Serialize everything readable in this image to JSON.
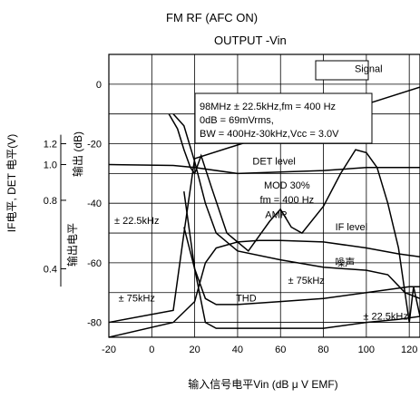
{
  "chart_data": {
    "type": "line",
    "title": "FM RF (AFC ON)",
    "subtitle": "OUTPUT -Vin",
    "xlabel": "输入信号电平Vin (dB μ V EMF)",
    "ylabel_left": "IF电平, DET 电平(V)",
    "ylabel_right_outer": "输出电平",
    "ylabel_right_inner": "输出 (dB)",
    "xlim": [
      -20,
      125
    ],
    "ylim": [
      -85,
      10
    ],
    "x_ticks": [
      "-20",
      "0",
      "20",
      "40",
      "60",
      "80",
      "100",
      "120"
    ],
    "x_tick_values": [
      -20,
      0,
      20,
      40,
      60,
      80,
      100,
      120
    ],
    "y_ticks": [
      "0",
      "-20",
      "-40",
      "-60",
      "-80"
    ],
    "y_tick_values": [
      0,
      -20,
      -40,
      -60,
      -80
    ],
    "volt_ticks": [
      "1.2",
      "1.0",
      "0.8",
      "0.4"
    ],
    "volt_tick_db": [
      -20,
      -27,
      -39,
      -62
    ],
    "grid": true,
    "conditions": [
      "98MHz ± 22.5kHz,fm = 400 Hz",
      "0dB = 69mVrms,",
      "BW = 400Hz-30kHz,Vcc = 3.0V"
    ],
    "annotations": [
      {
        "text": "Signal",
        "x": 101,
        "y": 4
      },
      {
        "text": "DET level",
        "x": 57,
        "y": -27
      },
      {
        "text": "MOD 30%",
        "x": 63,
        "y": -35
      },
      {
        "text": "fm = 400 Hz",
        "x": 63,
        "y": -40
      },
      {
        "text": "AMR",
        "x": 58,
        "y": -45
      },
      {
        "text": "IF level",
        "x": 93,
        "y": -49
      },
      {
        "text": "噪声",
        "x": 90,
        "y": -61
      },
      {
        "text": "± 22.5kHz",
        "x": -7,
        "y": -47
      },
      {
        "text": "± 75kHz",
        "x": -7,
        "y": -73
      },
      {
        "text": "THD",
        "x": 44,
        "y": -73
      },
      {
        "text": "± 75kHz",
        "x": 72,
        "y": -67
      },
      {
        "text": "± 22.5kHz",
        "x": 109,
        "y": -79
      }
    ],
    "series": [
      {
        "name": "Signal",
        "x": [
          -20,
          10,
          15,
          20,
          125
        ],
        "y": [
          -80,
          -76,
          -50,
          -25,
          -1
        ]
      },
      {
        "name": "DET level",
        "x": [
          -20,
          10,
          20,
          40,
          60,
          80,
          100,
          125
        ],
        "y": [
          -27,
          -27.3,
          -28,
          -30,
          -29.5,
          -29,
          -28,
          -28
        ]
      },
      {
        "name": "IF level",
        "x": [
          -20,
          10,
          20,
          25,
          30,
          40,
          50,
          60,
          80,
          100,
          115,
          125
        ],
        "y": [
          -85,
          -80,
          -73,
          -60,
          -55,
          -53,
          -52.5,
          -52.5,
          -53,
          -55,
          -57,
          -58
        ]
      },
      {
        "name": "噪声",
        "x": [
          10,
          15,
          20,
          25,
          30,
          40,
          60,
          80,
          100,
          110,
          118,
          125
        ],
        "y": [
          -10,
          -14,
          -26,
          -40,
          -50,
          -56,
          -59,
          -61.5,
          -62.5,
          -64,
          -70,
          -72
        ]
      },
      {
        "name": "AMR",
        "x": [
          8,
          12,
          15,
          18,
          20,
          23,
          28,
          35,
          45,
          55,
          60,
          65,
          70,
          80,
          88,
          95,
          100,
          105,
          110,
          115,
          118,
          120,
          122,
          125
        ],
        "y": [
          -10,
          -15,
          -22,
          -28,
          -30,
          -24,
          -35,
          -50,
          -56,
          -46,
          -42,
          -48,
          -50,
          -41,
          -30,
          -22,
          -23,
          -28,
          -40,
          -55,
          -70,
          -80,
          -68,
          -78
        ]
      },
      {
        "name": "THD ±22.5kHz",
        "x": [
          15,
          20,
          25,
          30,
          40,
          60,
          80,
          100,
          115,
          125
        ],
        "y": [
          -36,
          -62,
          -80,
          -82,
          -82,
          -82,
          -82,
          -80,
          -79,
          -78
        ]
      },
      {
        "name": "THD ±75kHz",
        "x": [
          15,
          20,
          25,
          30,
          40,
          60,
          80,
          100,
          120,
          125
        ],
        "y": [
          -48,
          -62,
          -72,
          -74,
          -74,
          -73,
          -72,
          -70,
          -68,
          -68
        ]
      }
    ]
  }
}
